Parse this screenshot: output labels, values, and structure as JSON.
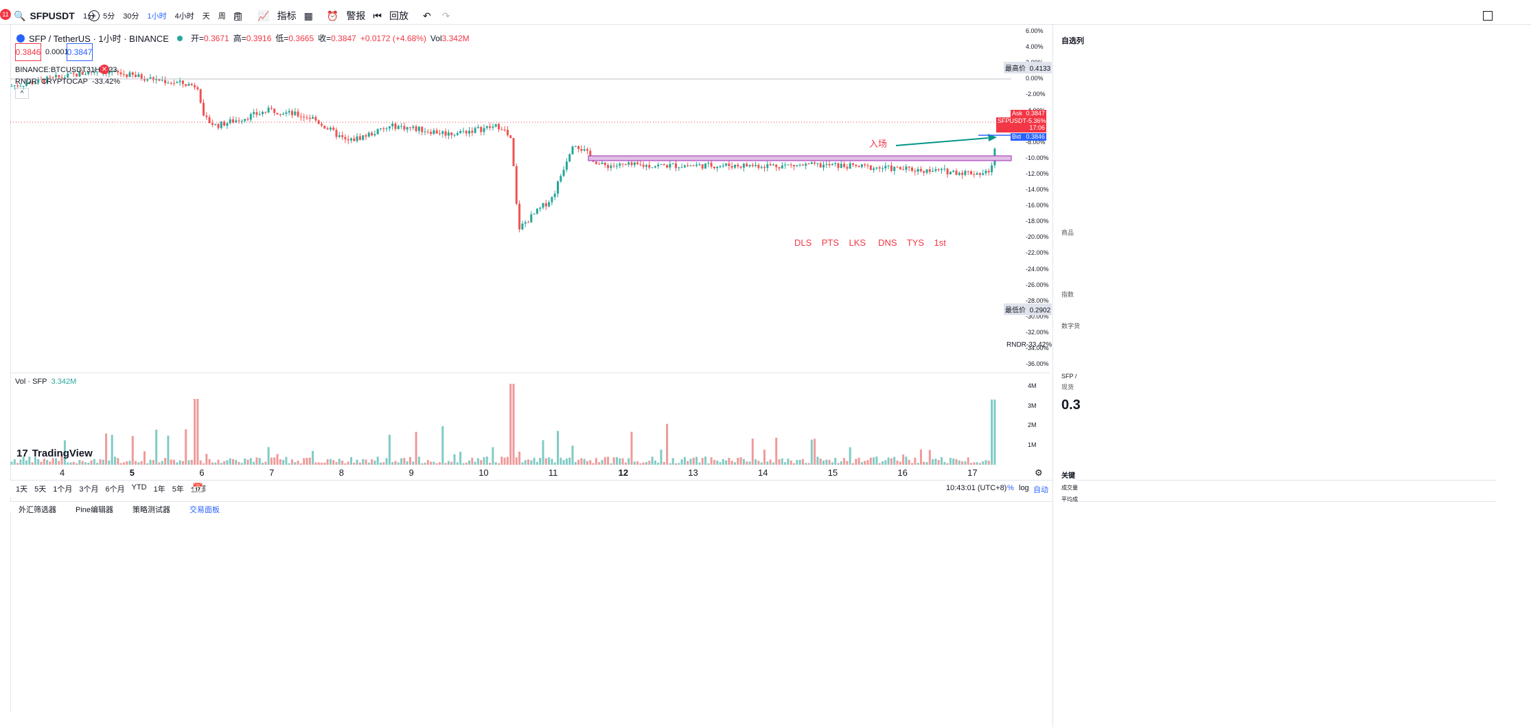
{
  "toolbar": {
    "badge_count": "11",
    "symbol": "SFPUSDT",
    "intervals": [
      "1分",
      "5分",
      "30分",
      "1小时",
      "4小时",
      "天",
      "周",
      "月"
    ],
    "active_interval": "1小时",
    "indicators": "指标",
    "alerts": "警报",
    "replay": "回放"
  },
  "legend": {
    "title": "SFP / TetherUS · 1小时 · BINANCE",
    "open_label": "开=",
    "open": "0.3671",
    "high_label": "高=",
    "high": "0.3916",
    "low_label": "低=",
    "low": "0.3665",
    "close_label": "收=",
    "close": "0.3847",
    "change": "+0.0172 (+4.68%)",
    "vol_label": "Vol",
    "vol": "3.342M",
    "bid_box": "0.3846",
    "spread": "0.0001",
    "ask_box": "0.3847",
    "compare1": "BINANCE:BTCUSDT31H2023",
    "compare2": "RNDR, CRYPTOCAP",
    "compare2_value": "-33.42%"
  },
  "price_axis": {
    "ticks": [
      "6.00%",
      "4.00%",
      "2.00%",
      "0.00%",
      "-2.00%",
      "-4.00%",
      "-6.00%",
      "-8.00%",
      "-10.00%",
      "-12.00%",
      "-14.00%",
      "-16.00%",
      "-18.00%",
      "-20.00%",
      "-22.00%",
      "-24.00%",
      "-26.00%",
      "-28.00%",
      "-30.00%",
      "-32.00%",
      "-34.00%",
      "-36.00%"
    ],
    "high_label": "最高价",
    "high_value": "0.4133",
    "low_label": "最低价",
    "low_value": "0.2902",
    "ask_label": "Ask",
    "ask_value": "0.3847",
    "sym_label": "SFPUSDT",
    "sym_change": "-5.36%",
    "countdown": "17:06",
    "bid_label": "Bid",
    "bid_value": "0.3846",
    "rndr_label": "RNDR",
    "rndr_value": "-33.42%"
  },
  "volume": {
    "title": "Vol · SFP",
    "value": "3.342M",
    "ticks": [
      "4M",
      "3M",
      "2M",
      "1M"
    ]
  },
  "annotations": {
    "entry": "入场",
    "sessions": "DLS    PTS    LKS     DNS    TYS    1st"
  },
  "date_axis": [
    "4",
    "5",
    "6",
    "7",
    "8",
    "9",
    "10",
    "11",
    "12",
    "13",
    "14",
    "15",
    "16",
    "17"
  ],
  "branding": "TradingView",
  "bottom": {
    "ranges": [
      "1天",
      "5天",
      "1个月",
      "3个月",
      "6个月",
      "YTD",
      "1年",
      "5年",
      "全部"
    ],
    "time": "10:43:01 (UTC+8)",
    "percent": "%",
    "log": "log",
    "auto": "自动"
  },
  "bottom_tabs": [
    "外汇筛选器",
    "Pine编辑器",
    "策略测试器",
    "交易面板"
  ],
  "right_panel": {
    "watchlist": "自选列",
    "products": "商品",
    "index": "指数",
    "crypto": "数字货",
    "symbol_short": "SFP /",
    "spot": "现货",
    "price_partial": "0.3",
    "key": "关键",
    "volume_label": "成交量",
    "avg_label": "平均成"
  },
  "colors": {
    "up": "#26a69a",
    "down": "#ef5350",
    "accent": "#2962ff",
    "zone": "#e1bee7"
  }
}
